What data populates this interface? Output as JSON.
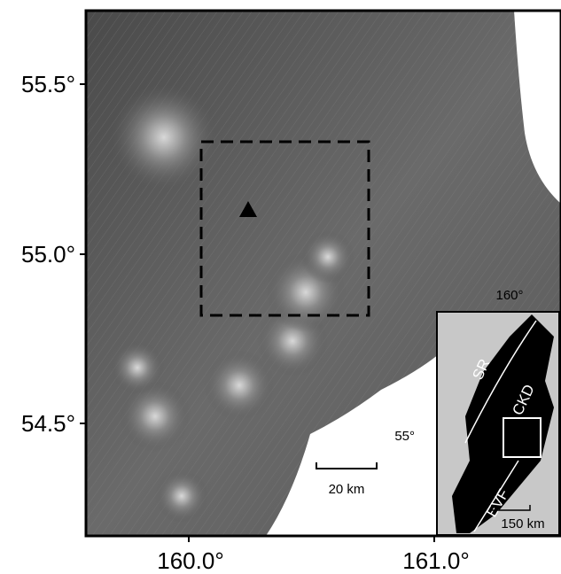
{
  "axes": {
    "lat_labels": [
      "55.5°",
      "55.0°",
      "54.5°"
    ],
    "lon_labels": [
      "160.0°",
      "161.0°"
    ]
  },
  "scale_bar": "20 km",
  "inset": {
    "lon_label": "160°",
    "lat_label": "55°",
    "regions": [
      "SR",
      "CKD",
      "EVF"
    ],
    "scale_bar": "150 km"
  }
}
